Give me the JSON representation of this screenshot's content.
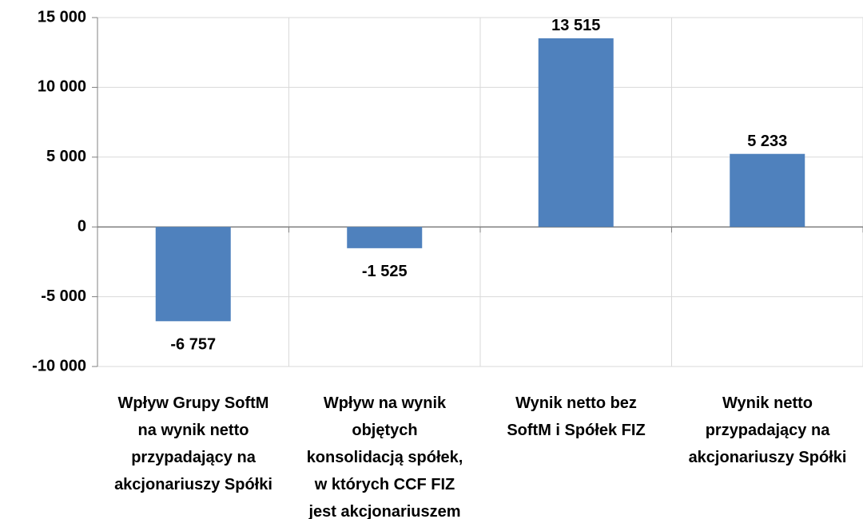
{
  "chart_data": {
    "type": "bar",
    "categories": [
      "Wpływ Grupy SoftM\nna wynik netto\nprzypadający na\nakcjonariuszy Spółki",
      "Wpływ na wynik\nobjętych\nkonsolidacją spółek,\nw których CCF FIZ\njest akcjonariuszem",
      "Wynik netto bez\nSoftM i Spółek FIZ",
      "Wynik netto\nprzypadający na\nakcjonariuszy Spółki"
    ],
    "values": [
      -6757,
      -1525,
      13515,
      5233
    ],
    "value_labels": [
      "-6 757",
      "-1 525",
      "13 515",
      "5 233"
    ],
    "color": "#4f81bd",
    "ylim": [
      -10000,
      15000
    ],
    "yticks": [
      {
        "value": -10000,
        "label": "-10 000"
      },
      {
        "value": -5000,
        "label": "-5 000"
      },
      0,
      {
        "value": 5000,
        "label": "5 000"
      },
      {
        "value": 10000,
        "label": "10 000"
      },
      {
        "value": 15000,
        "label": "15 000"
      }
    ],
    "grid": true
  }
}
